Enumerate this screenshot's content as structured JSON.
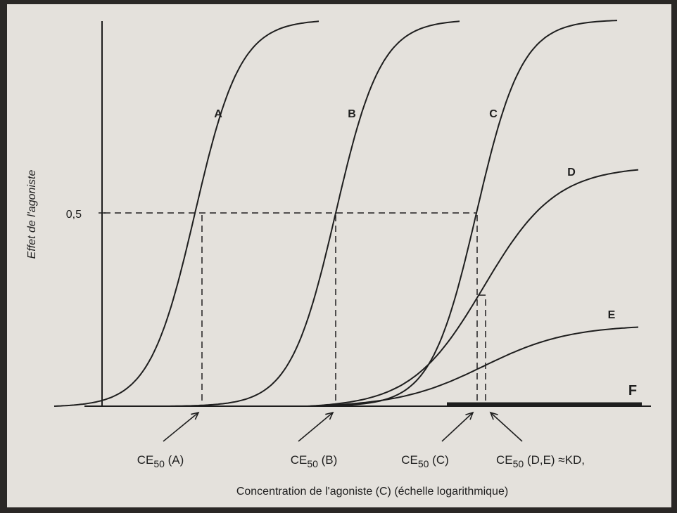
{
  "chart_data": {
    "type": "line",
    "x_scale": "log",
    "ylabel": "Effet de l'agoniste",
    "xlabel": "Concentration de l'agoniste (C) (échelle logarithmique)",
    "y_tick": "0,5",
    "y_tick_value": 0.5,
    "grid": false,
    "series": [
      {
        "name": "A",
        "log_ec50": 1.0,
        "emax": 1.0
      },
      {
        "name": "B",
        "log_ec50": 2.0,
        "emax": 1.0
      },
      {
        "name": "C",
        "log_ec50": 3.0,
        "emax": 1.0
      },
      {
        "name": "D",
        "log_ec50": 3.05,
        "emax": 0.62
      },
      {
        "name": "E",
        "log_ec50": 3.05,
        "emax": 0.21
      },
      {
        "name": "F",
        "log_ec50": null,
        "emax": 0.0
      }
    ],
    "annotations": [
      {
        "id": "ec50-a",
        "sub": "50",
        "pre": "CE",
        "post": " (A)",
        "x": 1.0
      },
      {
        "id": "ec50-b",
        "sub": "50",
        "pre": "CE",
        "post": " (B)",
        "x": 2.0
      },
      {
        "id": "ec50-c",
        "sub": "50",
        "pre": "CE",
        "post": " (C)",
        "x": 3.0
      },
      {
        "id": "ec50-de",
        "sub": "50",
        "pre": "CE",
        "post": " (D,E) ≈KD,",
        "x": 3.05
      }
    ]
  },
  "colors": {
    "paper": "#e4e1dc",
    "ink": "#1e1e1e",
    "frame": "#2a2826"
  }
}
